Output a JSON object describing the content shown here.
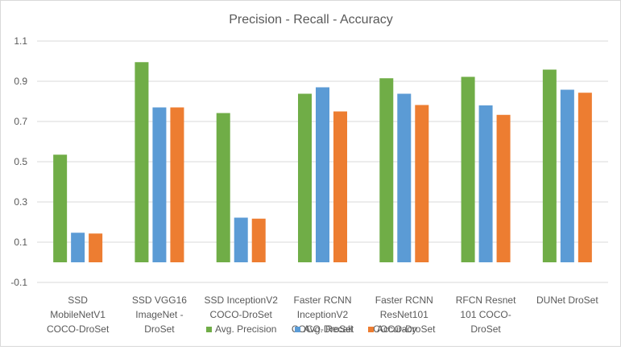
{
  "chart_data": {
    "type": "bar",
    "title": "Precision - Recall - Accuracy",
    "xlabel": "",
    "ylabel": "",
    "ylim": [
      -0.1,
      1.1
    ],
    "yticks": [
      "-0.1",
      "0.1",
      "0.3",
      "0.5",
      "0.7",
      "0.9",
      "1.1"
    ],
    "grid": true,
    "legend_position": "bottom",
    "categories": [
      [
        "SSD",
        "MobileNetV1",
        "COCO-DroSet"
      ],
      [
        "SSD VGG16",
        "ImageNet -",
        "DroSet"
      ],
      [
        "SSD InceptionV2",
        "COCO-DroSet"
      ],
      [
        "Faster RCNN",
        "InceptionV2",
        "COCO-DroSet"
      ],
      [
        "Faster RCNN",
        "ResNet101",
        "COCO-DroSet"
      ],
      [
        "RFCN Resnet",
        "101 COCO-",
        "DroSet"
      ],
      [
        "DUNet DroSet"
      ]
    ],
    "series": [
      {
        "name": "Avg. Precision",
        "color": "#70ad47",
        "values": [
          0.535,
          0.995,
          0.742,
          0.838,
          0.915,
          0.922,
          0.958
        ]
      },
      {
        "name": "Avg. Recall",
        "color": "#5b9bd5",
        "values": [
          0.147,
          0.77,
          0.222,
          0.87,
          0.838,
          0.78,
          0.858
        ]
      },
      {
        "name": "Accuracy",
        "color": "#ed7d31",
        "values": [
          0.143,
          0.77,
          0.217,
          0.75,
          0.782,
          0.733,
          0.843
        ]
      }
    ]
  }
}
